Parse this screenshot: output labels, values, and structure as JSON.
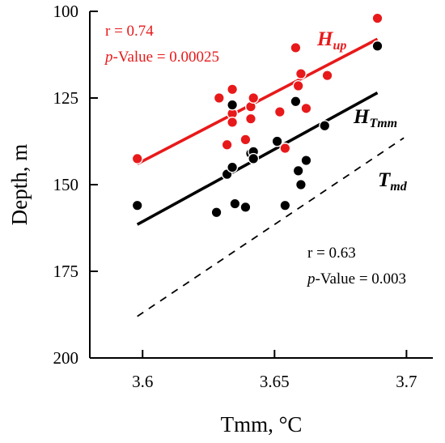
{
  "chart_data": {
    "type": "scatter",
    "title": "",
    "xlabel": "Tmm, °C",
    "ylabel": "Depth, m",
    "xlim": [
      3.58,
      3.71
    ],
    "ylim": [
      100,
      200
    ],
    "y_inverted": true,
    "grid": false,
    "x_ticks": [
      "3.6",
      "3.65",
      "3.7"
    ],
    "x_tick_values": [
      3.6,
      3.65,
      3.7
    ],
    "y_ticks": [
      "100",
      "125",
      "150",
      "175",
      "200"
    ],
    "y_tick_values": [
      100,
      125,
      150,
      175,
      200
    ],
    "series": [
      {
        "name": "Hup",
        "label_main": "H",
        "label_sub": "up",
        "color": "#e8191a",
        "points": [
          [
            3.598,
            142.5
          ],
          [
            3.629,
            125
          ],
          [
            3.632,
            138.5
          ],
          [
            3.634,
            122.5
          ],
          [
            3.634,
            129.5
          ],
          [
            3.634,
            132
          ],
          [
            3.639,
            137
          ],
          [
            3.641,
            131
          ],
          [
            3.641,
            127.5
          ],
          [
            3.642,
            125
          ],
          [
            3.652,
            129
          ],
          [
            3.654,
            139.5
          ],
          [
            3.658,
            110.5
          ],
          [
            3.659,
            121.5
          ],
          [
            3.66,
            118
          ],
          [
            3.662,
            128
          ],
          [
            3.67,
            118.5
          ],
          [
            3.689,
            102
          ]
        ],
        "trend": {
          "x": [
            3.598,
            3.689
          ],
          "y": [
            144,
            108
          ]
        },
        "stats": {
          "r": "r = 0.74",
          "p_prefix": "p",
          "p_value": "-Value = 0.00025"
        }
      },
      {
        "name": "HTmm",
        "label_main": "H",
        "label_sub": "Tmm",
        "color": "#000000",
        "points": [
          [
            3.598,
            156
          ],
          [
            3.628,
            158
          ],
          [
            3.632,
            147
          ],
          [
            3.634,
            127
          ],
          [
            3.634,
            145
          ],
          [
            3.635,
            155.5
          ],
          [
            3.639,
            156.5
          ],
          [
            3.641,
            141
          ],
          [
            3.642,
            140.5
          ],
          [
            3.642,
            142.5
          ],
          [
            3.651,
            137.5
          ],
          [
            3.654,
            156
          ],
          [
            3.658,
            126
          ],
          [
            3.659,
            146
          ],
          [
            3.66,
            150
          ],
          [
            3.662,
            143
          ],
          [
            3.669,
            133
          ],
          [
            3.689,
            110
          ]
        ],
        "trend": {
          "x": [
            3.598,
            3.689
          ],
          "y": [
            161.5,
            123.5
          ]
        },
        "stats": {
          "r": "r = 0.63",
          "p_prefix": "p",
          "p_value": "-Value = 0.003"
        }
      },
      {
        "name": "Tmd",
        "label_main": "T",
        "label_sub": "md",
        "color": "#000000",
        "points": [],
        "trend": {
          "x": [
            3.598,
            3.699
          ],
          "y": [
            188,
            136.5
          ],
          "dashed": true
        }
      }
    ]
  }
}
